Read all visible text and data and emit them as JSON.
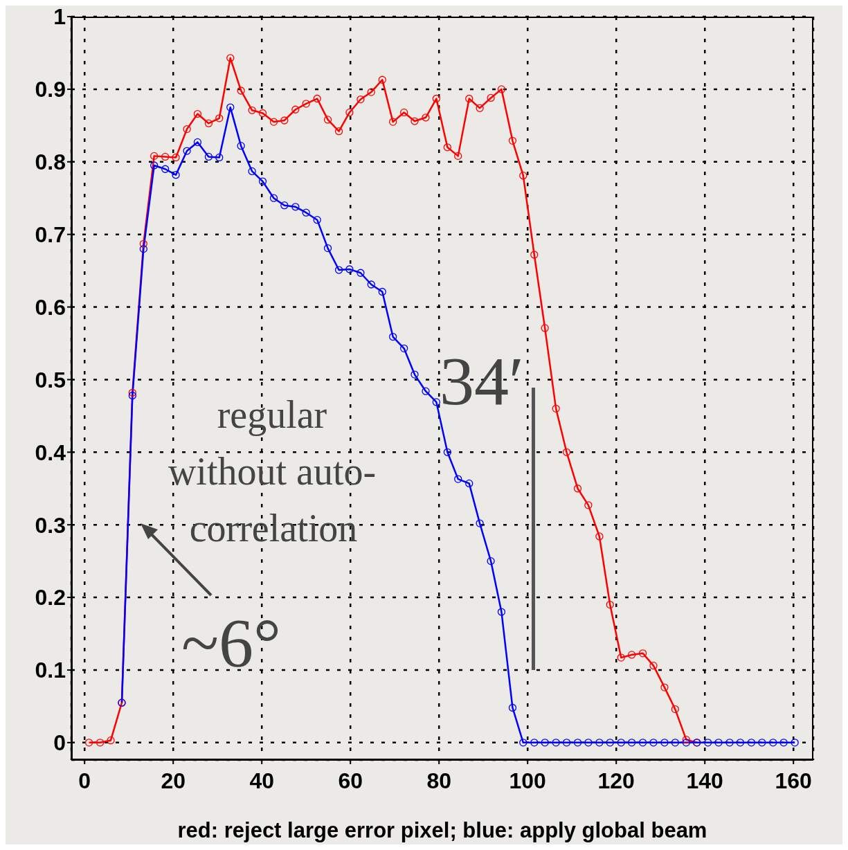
{
  "chart_data": {
    "type": "line",
    "xlabel": "red: reject large error pixel; blue: apply global beam",
    "annotations": [
      "regular",
      "without auto-",
      "correlation",
      "34′",
      "~6°"
    ],
    "x": [
      1,
      3.5,
      5.9,
      8.4,
      10.8,
      13.3,
      15.7,
      18.2,
      20.6,
      23.1,
      25.5,
      28,
      30.4,
      32.9,
      35.3,
      37.8,
      40.2,
      42.7,
      45.1,
      47.6,
      50,
      52.5,
      54.9,
      57.4,
      59.8,
      62.3,
      64.7,
      67.2,
      69.6,
      72.1,
      74.5,
      77,
      79.4,
      81.9,
      84.3,
      86.8,
      89.2,
      91.7,
      94.1,
      96.6,
      99,
      101.5,
      103.9,
      106.4,
      108.8,
      111.3,
      113.7,
      116.2,
      118.6,
      121.1,
      123.5,
      126,
      128.4,
      130.9,
      133.3,
      135.8,
      138.2,
      140.7,
      143.1,
      145.6,
      148,
      150.5,
      152.9,
      155.4,
      157.8,
      160.3
    ],
    "series": [
      {
        "color": "#ff0000",
        "values": [
          0,
          0,
          0.003,
          0.055,
          0.482,
          0.687,
          0.808,
          0.807,
          0.806,
          0.845,
          0.866,
          0.853,
          0.86,
          0.943,
          0.898,
          0.871,
          0.867,
          0.855,
          0.857,
          0.872,
          0.88,
          0.887,
          0.858,
          0.842,
          0.868,
          0.886,
          0.896,
          0.913,
          0.855,
          0.868,
          0.856,
          0.861,
          0.887,
          0.82,
          0.808,
          0.887,
          0.874,
          0.888,
          0.9,
          0.829,
          0.781,
          0.672,
          0.571,
          0.46,
          0.4,
          0.35,
          0.327,
          0.284,
          0.19,
          0.117,
          0.121,
          0.123,
          0.106,
          0.076,
          0.046,
          0.004,
          0,
          null,
          null,
          null,
          null,
          null,
          null,
          null,
          null,
          null
        ]
      },
      {
        "color": "#0000ff",
        "values": [
          null,
          null,
          null,
          0.055,
          0.478,
          0.68,
          0.795,
          0.79,
          0.782,
          0.815,
          0.827,
          0.807,
          0.806,
          0.875,
          0.822,
          0.787,
          0.773,
          0.75,
          0.74,
          0.738,
          0.73,
          0.72,
          0.681,
          0.651,
          0.652,
          0.647,
          0.631,
          0.621,
          0.559,
          0.543,
          0.507,
          0.484,
          0.469,
          0.4,
          0.363,
          0.357,
          0.302,
          0.25,
          0.18,
          0.048,
          0,
          0,
          0,
          0,
          0,
          0,
          0,
          0,
          0,
          0,
          0,
          0,
          0,
          0,
          0,
          0,
          0,
          0,
          0,
          0,
          0,
          0,
          0,
          0,
          0,
          0
        ]
      }
    ],
    "xlim": [
      -3,
      164.5
    ],
    "xticks": [
      0,
      20,
      40,
      60,
      80,
      100,
      120,
      140,
      160
    ],
    "ylim": [
      -0.024,
      1
    ],
    "yticks": [
      0,
      0.1,
      0.2,
      0.3,
      0.4,
      0.5,
      0.6,
      0.7,
      0.8,
      0.9,
      1
    ],
    "grid": true,
    "marker": "circle",
    "line_style": "solid"
  }
}
